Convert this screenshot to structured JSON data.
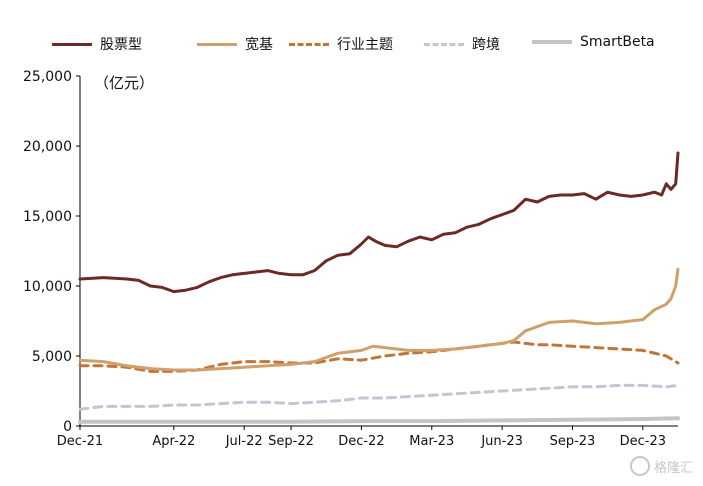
{
  "chart_data": {
    "type": "line",
    "unit_label": "（亿元）",
    "ylim": [
      0,
      25000
    ],
    "y_ticks": [
      "25,000",
      "20,000",
      "15,000",
      "10,000",
      "5,000",
      "0"
    ],
    "y_tick_values": [
      25000,
      20000,
      15000,
      10000,
      5000,
      0
    ],
    "x_ticks": [
      "Dec-21",
      "Apr-22",
      "Jul-22",
      "Sep-22",
      "Dec-22",
      "Mar-23",
      "Jun-23",
      "Sep-23",
      "Dec-23"
    ],
    "x_tick_positions": [
      0,
      4,
      7,
      9,
      12,
      15,
      18,
      21,
      24
    ],
    "x_range": [
      0,
      25.5
    ],
    "grid": false,
    "legend_position": "top",
    "series": [
      {
        "name": "股票型",
        "color": "#6b2a22",
        "style": "solid",
        "points": [
          [
            0,
            10500
          ],
          [
            1,
            10600
          ],
          [
            2,
            10500
          ],
          [
            2.5,
            10400
          ],
          [
            3,
            10000
          ],
          [
            3.5,
            9900
          ],
          [
            4,
            9600
          ],
          [
            4.5,
            9700
          ],
          [
            5,
            9900
          ],
          [
            5.5,
            10300
          ],
          [
            6,
            10600
          ],
          [
            6.5,
            10800
          ],
          [
            7,
            10900
          ],
          [
            7.5,
            11000
          ],
          [
            8,
            11100
          ],
          [
            8.5,
            10900
          ],
          [
            9,
            10800
          ],
          [
            9.5,
            10800
          ],
          [
            10,
            11100
          ],
          [
            10.5,
            11800
          ],
          [
            11,
            12200
          ],
          [
            11.5,
            12300
          ],
          [
            12,
            13000
          ],
          [
            12.3,
            13500
          ],
          [
            12.6,
            13200
          ],
          [
            13,
            12900
          ],
          [
            13.5,
            12800
          ],
          [
            14,
            13200
          ],
          [
            14.5,
            13500
          ],
          [
            15,
            13300
          ],
          [
            15.5,
            13700
          ],
          [
            16,
            13800
          ],
          [
            16.5,
            14200
          ],
          [
            17,
            14400
          ],
          [
            17.5,
            14800
          ],
          [
            18,
            15100
          ],
          [
            18.5,
            15400
          ],
          [
            19,
            16200
          ],
          [
            19.5,
            16000
          ],
          [
            20,
            16400
          ],
          [
            20.5,
            16500
          ],
          [
            21,
            16500
          ],
          [
            21.5,
            16600
          ],
          [
            22,
            16200
          ],
          [
            22.5,
            16700
          ],
          [
            23,
            16500
          ],
          [
            23.5,
            16400
          ],
          [
            24,
            16500
          ],
          [
            24.5,
            16700
          ],
          [
            24.8,
            16500
          ],
          [
            25,
            17300
          ],
          [
            25.2,
            16900
          ],
          [
            25.4,
            17300
          ],
          [
            25.5,
            19500
          ]
        ]
      },
      {
        "name": "宽基",
        "color": "#d0a06a",
        "style": "solid",
        "points": [
          [
            0,
            4700
          ],
          [
            1,
            4600
          ],
          [
            2,
            4300
          ],
          [
            3,
            4100
          ],
          [
            4,
            4000
          ],
          [
            5,
            4000
          ],
          [
            6,
            4100
          ],
          [
            7,
            4200
          ],
          [
            8,
            4300
          ],
          [
            9,
            4400
          ],
          [
            10,
            4600
          ],
          [
            11,
            5200
          ],
          [
            12,
            5400
          ],
          [
            12.5,
            5700
          ],
          [
            13,
            5600
          ],
          [
            14,
            5400
          ],
          [
            15,
            5400
          ],
          [
            16,
            5500
          ],
          [
            17,
            5700
          ],
          [
            18,
            5900
          ],
          [
            18.5,
            6100
          ],
          [
            19,
            6800
          ],
          [
            19.5,
            7100
          ],
          [
            20,
            7400
          ],
          [
            21,
            7500
          ],
          [
            22,
            7300
          ],
          [
            23,
            7400
          ],
          [
            24,
            7600
          ],
          [
            24.5,
            8300
          ],
          [
            25,
            8700
          ],
          [
            25.2,
            9100
          ],
          [
            25.4,
            10000
          ],
          [
            25.5,
            11200
          ]
        ]
      },
      {
        "name": "行业主题",
        "color": "#c0763a",
        "style": "dashed",
        "points": [
          [
            0,
            4300
          ],
          [
            1,
            4300
          ],
          [
            2,
            4200
          ],
          [
            3,
            3900
          ],
          [
            4,
            3900
          ],
          [
            5,
            4000
          ],
          [
            6,
            4400
          ],
          [
            7,
            4600
          ],
          [
            8,
            4600
          ],
          [
            9,
            4500
          ],
          [
            10,
            4500
          ],
          [
            11,
            4800
          ],
          [
            12,
            4700
          ],
          [
            13,
            5000
          ],
          [
            14,
            5200
          ],
          [
            15,
            5300
          ],
          [
            16,
            5500
          ],
          [
            17,
            5700
          ],
          [
            18,
            5900
          ],
          [
            18.5,
            6000
          ],
          [
            19,
            5900
          ],
          [
            19.5,
            5800
          ],
          [
            20,
            5800
          ],
          [
            21,
            5700
          ],
          [
            22,
            5600
          ],
          [
            23,
            5500
          ],
          [
            24,
            5400
          ],
          [
            25,
            5000
          ],
          [
            25.5,
            4500
          ]
        ]
      },
      {
        "name": "跨境",
        "color": "#c4c4d4",
        "style": "dashed",
        "points": [
          [
            0,
            1200
          ],
          [
            1,
            1400
          ],
          [
            2,
            1400
          ],
          [
            3,
            1400
          ],
          [
            4,
            1500
          ],
          [
            5,
            1500
          ],
          [
            6,
            1600
          ],
          [
            7,
            1700
          ],
          [
            8,
            1700
          ],
          [
            9,
            1600
          ],
          [
            10,
            1700
          ],
          [
            11,
            1800
          ],
          [
            12,
            2000
          ],
          [
            13,
            2000
          ],
          [
            14,
            2100
          ],
          [
            15,
            2200
          ],
          [
            16,
            2300
          ],
          [
            17,
            2400
          ],
          [
            18,
            2500
          ],
          [
            19,
            2600
          ],
          [
            20,
            2700
          ],
          [
            21,
            2800
          ],
          [
            22,
            2800
          ],
          [
            23,
            2900
          ],
          [
            24,
            2900
          ],
          [
            25,
            2800
          ],
          [
            25.5,
            2900
          ]
        ]
      },
      {
        "name": "SmartBeta",
        "color": "#c4c4c4",
        "style": "solid",
        "points": [
          [
            0,
            300
          ],
          [
            3,
            300
          ],
          [
            6,
            300
          ],
          [
            9,
            300
          ],
          [
            12,
            350
          ],
          [
            15,
            350
          ],
          [
            18,
            400
          ],
          [
            21,
            450
          ],
          [
            24,
            500
          ],
          [
            25.5,
            550
          ]
        ]
      }
    ]
  },
  "watermark": {
    "text": "格隆汇"
  }
}
